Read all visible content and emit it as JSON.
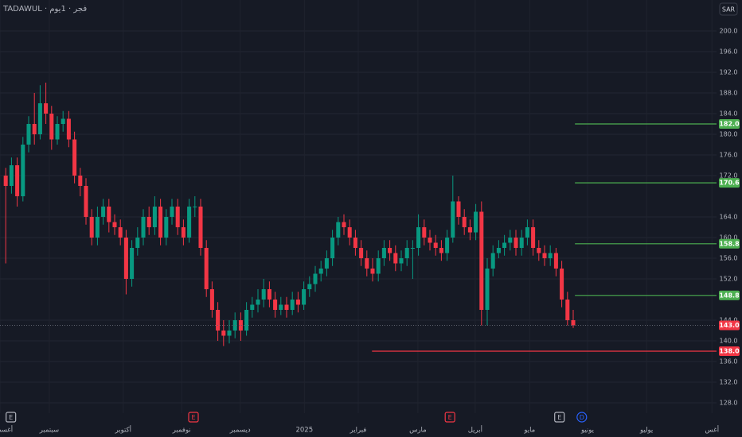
{
  "chart_data": {
    "type": "candlestick",
    "title": "TADAWUL · فجر · 1يوم",
    "currency": "SAR",
    "x": [
      0,
      1,
      2,
      3,
      4,
      5,
      6,
      7,
      8,
      9,
      10,
      11,
      12,
      13,
      14,
      15,
      16,
      17,
      18,
      19,
      20,
      21,
      22,
      23,
      24,
      25,
      26,
      27,
      28,
      29,
      30,
      31,
      32,
      33,
      34,
      35,
      36,
      37,
      38,
      39,
      40,
      41,
      42,
      43,
      44,
      45,
      46,
      47,
      48,
      49,
      50,
      51,
      52,
      53,
      54,
      55,
      56,
      57,
      58,
      59,
      60,
      61,
      62,
      63,
      64,
      65,
      66,
      67,
      68,
      69,
      70,
      71,
      72,
      73,
      74,
      75,
      76,
      77,
      78,
      79,
      80,
      81,
      82,
      83,
      84,
      85,
      86,
      87,
      88,
      89,
      90,
      91,
      92,
      93,
      94,
      95,
      96,
      97,
      98,
      99
    ],
    "open": [
      172,
      170,
      174,
      168,
      178,
      182,
      180,
      186,
      184,
      179,
      182,
      183,
      179,
      172,
      170,
      164,
      160,
      164,
      166,
      163,
      162,
      160,
      152,
      158,
      160,
      164,
      162,
      166,
      160,
      164,
      166,
      162,
      160,
      166,
      166,
      158,
      150,
      146,
      142,
      141,
      142,
      144,
      142,
      146,
      147,
      148,
      150,
      148,
      146,
      147,
      146,
      148,
      147,
      150,
      151,
      153,
      154,
      156,
      160,
      163,
      162,
      160,
      158,
      156,
      154,
      153,
      156,
      158,
      157,
      155,
      156,
      158,
      158,
      162,
      160,
      159,
      158,
      157,
      160,
      167,
      164,
      162,
      161,
      165,
      146,
      154,
      157,
      158,
      159,
      160,
      158,
      160,
      162,
      158,
      157,
      156,
      157,
      154,
      148,
      144
    ],
    "high": [
      173.5,
      175.5,
      175.5,
      179.5,
      183.5,
      188,
      189.5,
      190,
      185.5,
      183.5,
      184.5,
      184.5,
      180.5,
      173.5,
      171.5,
      165.5,
      166,
      167.5,
      167.5,
      164.5,
      163.5,
      161.5,
      159.5,
      162,
      165.5,
      166,
      168,
      167.5,
      165.5,
      167.5,
      167.5,
      163.5,
      167.5,
      168,
      167.5,
      159.5,
      151.5,
      147.5,
      144,
      144,
      145.5,
      145.5,
      147.5,
      148.5,
      150,
      152,
      151.5,
      149.5,
      148.5,
      148.5,
      149.5,
      149.5,
      151.5,
      152.5,
      154.5,
      155.5,
      157.5,
      161.5,
      164,
      164.5,
      163.5,
      161.5,
      159.5,
      157.5,
      156,
      157.5,
      159.5,
      159.5,
      158.5,
      157.5,
      159.5,
      159.5,
      164.5,
      163.5,
      161.5,
      160.5,
      159.5,
      161.5,
      172,
      168,
      165.5,
      163.5,
      166.5,
      167,
      156,
      158.5,
      159.5,
      160.5,
      161.5,
      161.5,
      161.5,
      163.5,
      163.5,
      159.5,
      158.5,
      158.5,
      158,
      155.5,
      149.5,
      146
    ],
    "low": [
      155,
      168.5,
      166,
      167,
      176.5,
      178,
      179,
      182,
      177,
      178,
      180.5,
      177.5,
      170.5,
      168,
      162.5,
      158.5,
      158.5,
      162.5,
      161,
      160.5,
      158.5,
      149,
      150.5,
      156.5,
      158.5,
      160.5,
      160.5,
      158.5,
      158.5,
      162.5,
      160.5,
      158.5,
      159,
      164,
      156.5,
      148.5,
      144.5,
      140,
      139,
      139.5,
      140.5,
      140,
      141,
      144.5,
      145.5,
      146.5,
      146.5,
      144.5,
      145,
      144.5,
      145,
      145.5,
      146,
      148.5,
      149.5,
      151.5,
      152.5,
      154.5,
      158.5,
      160.5,
      158.5,
      156.5,
      154.5,
      152.5,
      151.5,
      151.5,
      154.5,
      155.5,
      153.5,
      153.5,
      154.5,
      152,
      156.5,
      158.5,
      157.5,
      156.5,
      155.5,
      155.5,
      159,
      162.5,
      160.5,
      159.5,
      159.5,
      143,
      143,
      152.5,
      156,
      156.5,
      157.5,
      156.5,
      156.5,
      158.5,
      156.5,
      155.5,
      154.5,
      154.5,
      152.5,
      146.5,
      143,
      142.5
    ],
    "close": [
      170,
      174,
      168,
      178,
      182,
      180,
      186,
      184,
      179,
      182,
      183,
      179,
      172,
      170,
      164,
      160,
      164,
      166,
      163,
      162,
      160,
      152,
      158,
      160,
      164,
      162,
      166,
      160,
      164,
      166,
      162,
      160,
      166,
      166,
      158,
      150,
      146,
      142,
      141,
      142,
      144,
      142,
      146,
      147,
      148,
      150,
      148,
      146,
      147,
      146,
      148,
      147,
      150,
      151,
      153,
      154,
      156,
      160,
      163,
      162,
      160,
      158,
      156,
      154,
      153,
      156,
      158,
      157,
      155,
      156,
      158,
      158,
      162,
      160,
      159,
      158,
      157,
      160,
      167,
      164,
      162,
      161,
      165,
      146,
      154,
      157,
      158,
      159,
      160,
      158,
      160,
      162,
      158,
      157,
      156,
      157,
      154,
      148,
      144,
      143
    ],
    "up_color": "#089981",
    "down_color": "#f23645",
    "xlim": [
      -1,
      124
    ],
    "ylim": [
      126,
      206
    ],
    "grid": true,
    "xticks": [
      {
        "value": -1,
        "label": "أغسطس"
      },
      {
        "value": 7.6,
        "label": "سبتمبر"
      },
      {
        "value": 20.5,
        "label": "أكتوبر"
      },
      {
        "value": 30.7,
        "label": "نوفمبر"
      },
      {
        "value": 40.9,
        "label": "ديسمبر"
      },
      {
        "value": 52.1,
        "label": "2025"
      },
      {
        "value": 61.5,
        "label": "فبراير"
      },
      {
        "value": 71.9,
        "label": "مارس"
      },
      {
        "value": 81.9,
        "label": "أبريل"
      },
      {
        "value": 91.4,
        "label": "مايو"
      },
      {
        "value": 101.5,
        "label": "يونيو"
      },
      {
        "value": 111.8,
        "label": "يوليو"
      },
      {
        "value": 123.2,
        "label": "أغس"
      }
    ],
    "yticks": [
      {
        "value": 128,
        "label": "128.0"
      },
      {
        "value": 132,
        "label": "132.0"
      },
      {
        "value": 136,
        "label": "136.0"
      },
      {
        "value": 140,
        "label": "140.0"
      },
      {
        "value": 144,
        "label": "144.0"
      },
      {
        "value": 152,
        "label": "152.0"
      },
      {
        "value": 156,
        "label": "156.0"
      },
      {
        "value": 160,
        "label": "160.0"
      },
      {
        "value": 164,
        "label": "164.0"
      },
      {
        "value": 172,
        "label": "172.0"
      },
      {
        "value": 176,
        "label": "176.0"
      },
      {
        "value": 180,
        "label": "180.0"
      },
      {
        "value": 184,
        "label": "184.0"
      },
      {
        "value": 188,
        "label": "188.0"
      },
      {
        "value": 192,
        "label": "192.0"
      },
      {
        "value": 196,
        "label": "196.0"
      },
      {
        "value": 200,
        "label": "200.0"
      }
    ],
    "levels": [
      {
        "value": 182,
        "label": "182.0",
        "color": "#4caf50",
        "start": 99.3
      },
      {
        "value": 170.6,
        "label": "170.6",
        "color": "#4caf50",
        "start": 99.3
      },
      {
        "value": 158.8,
        "label": "158.8",
        "color": "#4caf50",
        "start": 99.3
      },
      {
        "value": 148.8,
        "label": "148.8",
        "color": "#4caf50",
        "start": 99.3
      },
      {
        "value": 138,
        "label": "138.0",
        "color": "#f23645",
        "start": 63.9
      }
    ],
    "last_price": {
      "value": 143,
      "label": "143.0",
      "color": "#f23645"
    },
    "events": [
      {
        "x": 0.9,
        "label": "E",
        "color": "#b2b5be"
      },
      {
        "x": 32.75,
        "label": "E",
        "color": "#f23645"
      },
      {
        "x": 77.5,
        "label": "E",
        "color": "#f23645"
      },
      {
        "x": 96.6,
        "label": "E",
        "color": "#b2b5be"
      },
      {
        "x": 100.5,
        "label": "D",
        "color": "#2962ff"
      }
    ]
  }
}
